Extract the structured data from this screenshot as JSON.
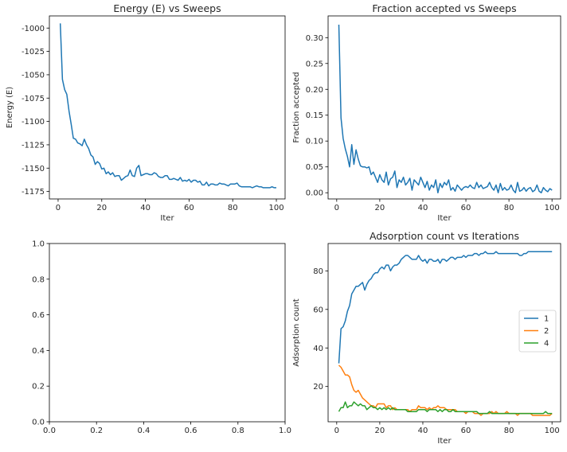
{
  "chart_data": [
    {
      "type": "line",
      "title": "Energy (E) vs Sweeps",
      "xlabel": "Iter",
      "ylabel": "Energy (E)",
      "xlim": [
        -4,
        104
      ],
      "ylim": [
        -1183,
        -987
      ],
      "xticks": [
        0,
        20,
        40,
        60,
        80,
        100
      ],
      "yticks": [
        -1000,
        -1025,
        -1050,
        -1075,
        -1100,
        -1125,
        -1150,
        -1175
      ],
      "color": "#1f77b4",
      "x": [
        1,
        2,
        3,
        4,
        5,
        6,
        7,
        8,
        9,
        10,
        11,
        12,
        13,
        14,
        15,
        16,
        17,
        18,
        19,
        20,
        21,
        22,
        23,
        24,
        25,
        26,
        27,
        28,
        29,
        30,
        31,
        32,
        33,
        34,
        35,
        36,
        37,
        38,
        39,
        40,
        41,
        42,
        43,
        44,
        45,
        46,
        47,
        48,
        49,
        50,
        51,
        52,
        53,
        54,
        55,
        56,
        57,
        58,
        59,
        60,
        61,
        62,
        63,
        64,
        65,
        66,
        67,
        68,
        69,
        70,
        71,
        72,
        73,
        74,
        75,
        76,
        77,
        78,
        79,
        80,
        81,
        82,
        83,
        84,
        85,
        86,
        87,
        88,
        89,
        90,
        91,
        92,
        93,
        94,
        95,
        96,
        97,
        98,
        99,
        100
      ],
      "y": [
        -995,
        -1055,
        -1066,
        -1071,
        -1089,
        -1103,
        -1118,
        -1119,
        -1123,
        -1124,
        -1126,
        -1119,
        -1125,
        -1129,
        -1136,
        -1138,
        -1146,
        -1143,
        -1145,
        -1151,
        -1150,
        -1156,
        -1154,
        -1157,
        -1155,
        -1159,
        -1158,
        -1158,
        -1163,
        -1161,
        -1159,
        -1158,
        -1152,
        -1158,
        -1159,
        -1150,
        -1147,
        -1158,
        -1157,
        -1156,
        -1156,
        -1157,
        -1157,
        -1155,
        -1156,
        -1159,
        -1160,
        -1160,
        -1158,
        -1158,
        -1162,
        -1162,
        -1161,
        -1162,
        -1163,
        -1160,
        -1164,
        -1163,
        -1164,
        -1162,
        -1165,
        -1163,
        -1163,
        -1165,
        -1164,
        -1168,
        -1168,
        -1165,
        -1169,
        -1167,
        -1167,
        -1168,
        -1168,
        -1166,
        -1167,
        -1167,
        -1168,
        -1169,
        -1167,
        -1167,
        -1167,
        -1166,
        -1169,
        -1170,
        -1170,
        -1170,
        -1170,
        -1170,
        -1171,
        -1170,
        -1169,
        -1170,
        -1170,
        -1171,
        -1171,
        -1171,
        -1171,
        -1170,
        -1171,
        -1171
      ]
    },
    {
      "type": "line",
      "title": "Fraction accepted vs Sweeps",
      "xlabel": "Iter",
      "ylabel": "Fraction accepted",
      "xlim": [
        -4,
        104
      ],
      "ylim": [
        -0.012,
        0.342
      ],
      "xticks": [
        0,
        20,
        40,
        60,
        80,
        100
      ],
      "yticks": [
        0.0,
        0.05,
        0.1,
        0.15,
        0.2,
        0.25,
        0.3
      ],
      "color": "#1f77b4",
      "x": [
        1,
        2,
        3,
        4,
        5,
        6,
        7,
        8,
        9,
        10,
        11,
        12,
        13,
        14,
        15,
        16,
        17,
        18,
        19,
        20,
        21,
        22,
        23,
        24,
        25,
        26,
        27,
        28,
        29,
        30,
        31,
        32,
        33,
        34,
        35,
        36,
        37,
        38,
        39,
        40,
        41,
        42,
        43,
        44,
        45,
        46,
        47,
        48,
        49,
        50,
        51,
        52,
        53,
        54,
        55,
        56,
        57,
        58,
        59,
        60,
        61,
        62,
        63,
        64,
        65,
        66,
        67,
        68,
        69,
        70,
        71,
        72,
        73,
        74,
        75,
        76,
        77,
        78,
        79,
        80,
        81,
        82,
        83,
        84,
        85,
        86,
        87,
        88,
        89,
        90,
        91,
        92,
        93,
        94,
        95,
        96,
        97,
        98,
        99,
        100
      ],
      "y": [
        0.325,
        0.145,
        0.105,
        0.085,
        0.07,
        0.05,
        0.093,
        0.055,
        0.083,
        0.065,
        0.052,
        0.05,
        0.05,
        0.048,
        0.05,
        0.035,
        0.04,
        0.03,
        0.02,
        0.035,
        0.025,
        0.02,
        0.04,
        0.015,
        0.027,
        0.03,
        0.042,
        0.01,
        0.025,
        0.02,
        0.03,
        0.015,
        0.02,
        0.028,
        0.005,
        0.025,
        0.02,
        0.015,
        0.03,
        0.02,
        0.01,
        0.022,
        0.005,
        0.015,
        0.01,
        0.025,
        0.0,
        0.018,
        0.01,
        0.02,
        0.015,
        0.025,
        0.005,
        0.01,
        0.003,
        0.015,
        0.01,
        0.005,
        0.01,
        0.012,
        0.01,
        0.015,
        0.01,
        0.008,
        0.02,
        0.01,
        0.015,
        0.008,
        0.01,
        0.012,
        0.02,
        0.01,
        0.005,
        0.015,
        0.0,
        0.018,
        0.005,
        0.01,
        0.005,
        0.007,
        0.015,
        0.005,
        0.0,
        0.02,
        0.003,
        0.005,
        0.01,
        0.003,
        0.008,
        0.01,
        0.002,
        0.005,
        0.015,
        0.003,
        0.0,
        0.01,
        0.005,
        0.002,
        0.008,
        0.005
      ]
    },
    {
      "type": "line",
      "title": "",
      "xlabel": "",
      "ylabel": "",
      "xlim": [
        0,
        1
      ],
      "ylim": [
        0,
        1
      ],
      "xticks": [
        0.0,
        0.2,
        0.4,
        0.6,
        0.8,
        1.0
      ],
      "yticks": [
        0.0,
        0.2,
        0.4,
        0.6,
        0.8,
        1.0
      ],
      "tick_format": "%.1f",
      "series": []
    },
    {
      "type": "line",
      "title": "Adsorption count vs Iterations",
      "xlabel": "Iter",
      "ylabel": "Adsorption count",
      "xlim": [
        -4,
        104
      ],
      "ylim": [
        1.7,
        94.2
      ],
      "xticks": [
        0,
        20,
        40,
        60,
        80,
        100
      ],
      "yticks": [
        20,
        40,
        60,
        80
      ],
      "legend": {
        "loc": "center-right"
      },
      "x": [
        1,
        2,
        3,
        4,
        5,
        6,
        7,
        8,
        9,
        10,
        11,
        12,
        13,
        14,
        15,
        16,
        17,
        18,
        19,
        20,
        21,
        22,
        23,
        24,
        25,
        26,
        27,
        28,
        29,
        30,
        31,
        32,
        33,
        34,
        35,
        36,
        37,
        38,
        39,
        40,
        41,
        42,
        43,
        44,
        45,
        46,
        47,
        48,
        49,
        50,
        51,
        52,
        53,
        54,
        55,
        56,
        57,
        58,
        59,
        60,
        61,
        62,
        63,
        64,
        65,
        66,
        67,
        68,
        69,
        70,
        71,
        72,
        73,
        74,
        75,
        76,
        77,
        78,
        79,
        80,
        81,
        82,
        83,
        84,
        85,
        86,
        87,
        88,
        89,
        90,
        91,
        92,
        93,
        94,
        95,
        96,
        97,
        98,
        99,
        100
      ],
      "series": [
        {
          "name": "1",
          "color": "#1f77b4",
          "values": [
            32,
            50,
            51,
            54,
            59,
            62,
            68,
            70,
            72,
            72,
            73,
            74,
            70,
            73,
            75,
            76,
            78,
            79,
            79,
            81,
            82,
            81,
            83,
            83,
            80,
            82,
            83,
            83,
            84,
            86,
            87,
            88,
            88,
            87,
            86,
            86,
            86,
            88,
            86,
            85,
            86,
            84,
            86,
            86,
            85,
            85,
            86,
            84,
            86,
            86,
            85,
            86,
            87,
            87,
            86,
            87,
            87,
            87,
            88,
            87,
            88,
            88,
            88,
            89,
            89,
            88,
            89,
            89,
            90,
            89,
            89,
            89,
            89,
            90,
            89,
            89,
            89,
            89,
            89,
            89,
            89,
            89,
            89,
            89,
            88,
            88,
            89,
            89,
            90,
            90,
            90,
            90,
            90,
            90,
            90,
            90,
            90,
            90,
            90,
            90
          ]
        },
        {
          "name": "2",
          "color": "#ff7f0e",
          "values": [
            31,
            30,
            28,
            26,
            26,
            25,
            21,
            18,
            17,
            18,
            16,
            14,
            13,
            12,
            11,
            10,
            10,
            9,
            11,
            11,
            11,
            11,
            9,
            10,
            10,
            8,
            9,
            8,
            8,
            8,
            8,
            8,
            8,
            7,
            8,
            8,
            8,
            10,
            9,
            9,
            9,
            8,
            9,
            8,
            9,
            9,
            10,
            9,
            9,
            9,
            8,
            8,
            8,
            8,
            8,
            7,
            7,
            7,
            7,
            6,
            7,
            7,
            7,
            6,
            6,
            6,
            5,
            6,
            6,
            6,
            6,
            7,
            6,
            7,
            6,
            6,
            6,
            6,
            7,
            6,
            6,
            6,
            6,
            5,
            6,
            6,
            6,
            6,
            6,
            6,
            5,
            5,
            5,
            5,
            5,
            5,
            5,
            5,
            5,
            6
          ]
        },
        {
          "name": "4",
          "color": "#2ca02c",
          "values": [
            7,
            9,
            9,
            12,
            9,
            10,
            10,
            12,
            11,
            10,
            11,
            10,
            10,
            8,
            9,
            10,
            9,
            9,
            8,
            9,
            8,
            9,
            8,
            9,
            8,
            9,
            8,
            8,
            8,
            8,
            8,
            8,
            7,
            7,
            7,
            7,
            7,
            8,
            8,
            8,
            8,
            7,
            8,
            8,
            8,
            8,
            7,
            8,
            7,
            8,
            8,
            7,
            7,
            8,
            7,
            7,
            7,
            7,
            7,
            7,
            7,
            7,
            7,
            7,
            7,
            6,
            6,
            6,
            6,
            6,
            7,
            6,
            6,
            6,
            6,
            6,
            6,
            6,
            6,
            6,
            6,
            6,
            6,
            6,
            6,
            6,
            6,
            6,
            6,
            6,
            6,
            6,
            6,
            6,
            6,
            6,
            7,
            6,
            6,
            6
          ]
        }
      ]
    }
  ]
}
